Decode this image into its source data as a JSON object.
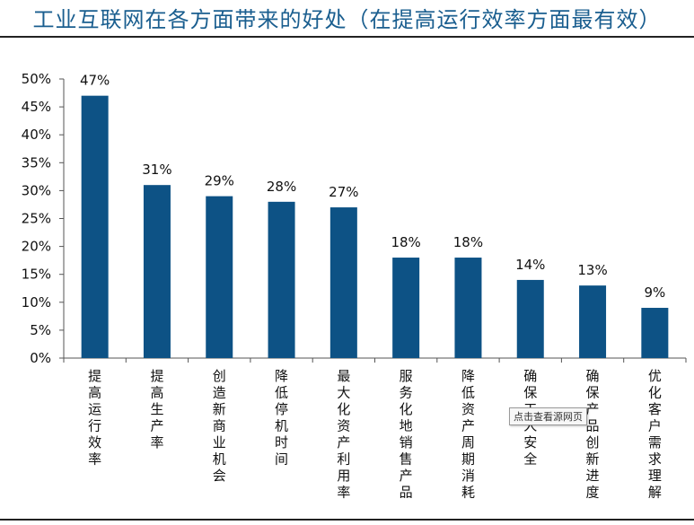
{
  "title": "工业互联网在各方面带来的好处（在提高运行效率方面最有效）",
  "tooltip": "点击查看源网页",
  "chart_data": {
    "type": "bar",
    "title": "工业互联网在各方面带来的好处（在提高运行效率方面最有效）",
    "categories": [
      "提高运行效率",
      "提高生产率",
      "创造新商业机会",
      "降低停机时间",
      "最大化资产利用率",
      "服务化地销售产品",
      "降低资产周期消耗",
      "确保工人安全",
      "确保产品创新进度",
      "优化客户需求理解"
    ],
    "values": [
      47,
      31,
      29,
      28,
      27,
      18,
      18,
      14,
      13,
      9
    ],
    "data_labels": [
      "47%",
      "31%",
      "29%",
      "28%",
      "27%",
      "18%",
      "18%",
      "14%",
      "13%",
      "9%"
    ],
    "yticks": [
      "0%",
      "5%",
      "10%",
      "15%",
      "20%",
      "25%",
      "30%",
      "35%",
      "40%",
      "45%",
      "50%"
    ],
    "ylim": [
      0,
      50
    ],
    "xlabel": "",
    "ylabel": "",
    "grid": false,
    "bar_color": "#0d5285"
  }
}
